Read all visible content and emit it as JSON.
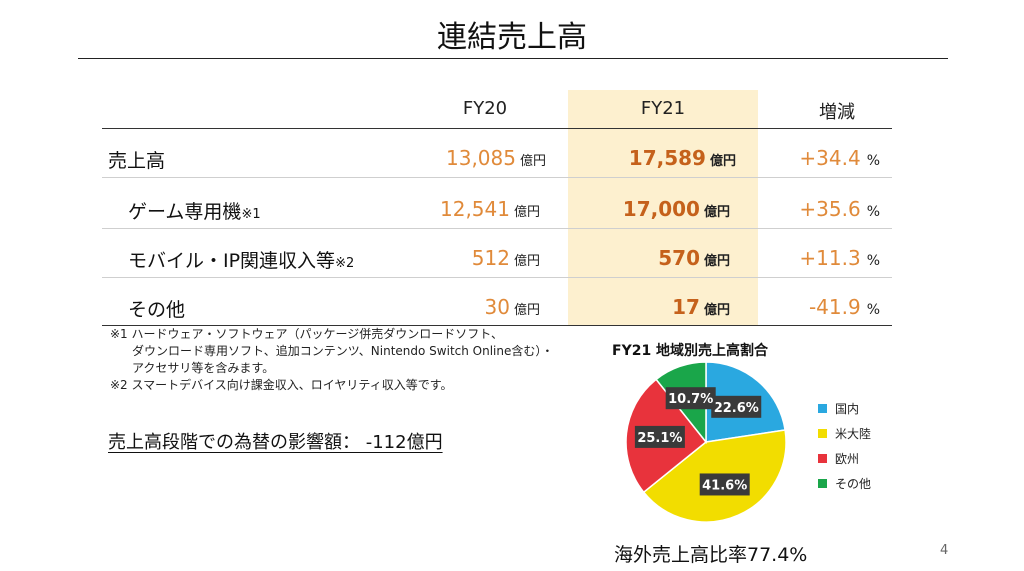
{
  "title": "連結売上高",
  "table": {
    "headers": [
      "FY20",
      "FY21",
      "増減"
    ],
    "rows": [
      {
        "label": "売上高",
        "note": "",
        "fy20": "13,085",
        "fy21": "17,589",
        "change": "+34.4"
      },
      {
        "label": "ゲーム専用機",
        "note": "※1",
        "fy20": "12,541",
        "fy21": "17,000",
        "change": "+35.6"
      },
      {
        "label": "モバイル・IP関連収入等",
        "note": "※2",
        "fy20": "512",
        "fy21": "570",
        "change": "+11.3"
      },
      {
        "label": "その他",
        "note": "",
        "fy20": "30",
        "fy21": "17",
        "change": "-41.9"
      }
    ],
    "unit_money": "億円",
    "unit_pct": "%"
  },
  "notes": [
    "※1 ハードウェア・ソフトウェア（パッケージ併売ダウンロードソフト、",
    "ダウンロード専用ソフト、追加コンテンツ、Nintendo Switch Online含む）・",
    "アクセサリ等を含みます。",
    "※2 スマートデバイス向け課金収入、ロイヤリティ収入等です。"
  ],
  "fx_impact": "売上高段階での為替の影響額： -112億円",
  "chart_data": {
    "type": "pie",
    "title": "FY21 地域別売上高割合",
    "slices": [
      {
        "name": "国内",
        "value": 22.6,
        "label": "22.6%",
        "color": "#2aa8e0"
      },
      {
        "name": "米大陸",
        "value": 41.6,
        "label": "41.6%",
        "color": "#f2dd00"
      },
      {
        "name": "欧州",
        "value": 25.1,
        "label": "25.1%",
        "color": "#e8333c"
      },
      {
        "name": "その他",
        "value": 10.7,
        "label": "10.7%",
        "color": "#1aa64a"
      }
    ],
    "legend_position": "right"
  },
  "overseas_ratio": "海外売上高比率77.4%",
  "page_number": "4"
}
